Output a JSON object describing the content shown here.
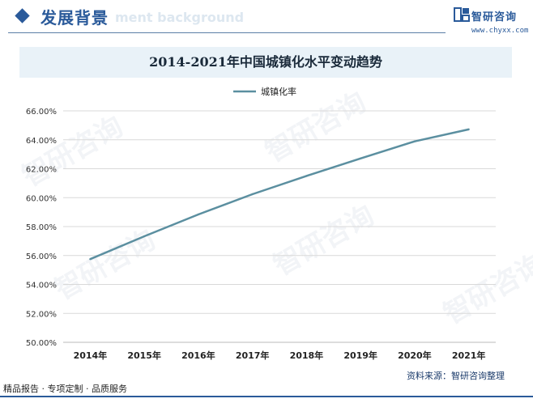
{
  "header": {
    "title": "发展背景",
    "ghost_text": "ment background",
    "brand_name": "智研咨询",
    "brand_url": "www.chyxx.com"
  },
  "chart_data": {
    "type": "line",
    "title": "2014-2021年中国城镇化水平变动趋势",
    "categories": [
      "2014年",
      "2015年",
      "2016年",
      "2017年",
      "2018年",
      "2019年",
      "2020年",
      "2021年"
    ],
    "series": [
      {
        "name": "城镇化率",
        "values": [
          55.75,
          57.33,
          58.84,
          60.24,
          61.5,
          62.71,
          63.89,
          64.72
        ]
      }
    ],
    "ylim": [
      50,
      66
    ],
    "y_ticks": [
      "50.00%",
      "52.00%",
      "54.00%",
      "56.00%",
      "58.00%",
      "60.00%",
      "62.00%",
      "64.00%",
      "66.00%"
    ],
    "grid": true,
    "legend": "top-center",
    "line_color": "#5b8fa0"
  },
  "source": "资料来源：智研咨询整理",
  "footer": {
    "text": "精品报告 · 专项定制 · 品质服务"
  },
  "watermark": "智研咨询"
}
